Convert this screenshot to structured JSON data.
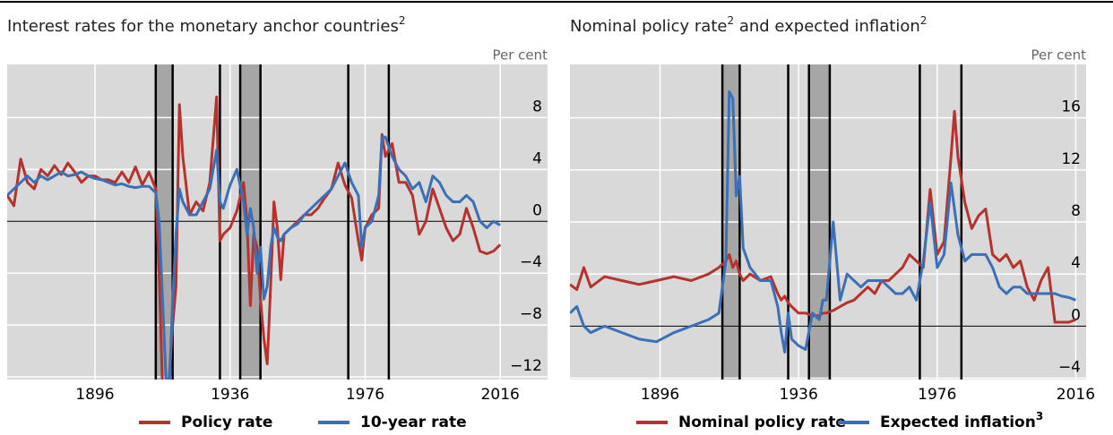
{
  "chart_data": [
    {
      "type": "line",
      "title": "Interest rates for the monetary anchor countries",
      "title_note": "2",
      "y_unit": "Per cent",
      "x": [
        1870,
        1872,
        1874,
        1876,
        1878,
        1880,
        1882,
        1884,
        1886,
        1888,
        1890,
        1892,
        1894,
        1896,
        1898,
        1900,
        1902,
        1904,
        1906,
        1908,
        1910,
        1912,
        1914,
        1915,
        1916,
        1917,
        1918,
        1919,
        1920,
        1921,
        1922,
        1924,
        1926,
        1928,
        1930,
        1932,
        1933,
        1934,
        1936,
        1938,
        1940,
        1941,
        1942,
        1943,
        1944,
        1945,
        1946,
        1947,
        1948,
        1949,
        1950,
        1951,
        1952,
        1954,
        1956,
        1958,
        1960,
        1962,
        1964,
        1966,
        1968,
        1970,
        1972,
        1974,
        1975,
        1976,
        1978,
        1980,
        1981,
        1982,
        1984,
        1986,
        1988,
        1990,
        1992,
        1994,
        1996,
        1998,
        2000,
        2002,
        2004,
        2006,
        2008,
        2010,
        2012,
        2014,
        2016
      ],
      "series": [
        {
          "name": "Policy rate",
          "color": "#b5322e",
          "values": [
            2,
            1.2,
            4.8,
            3,
            2.5,
            4,
            3.5,
            4.3,
            3.6,
            4.5,
            3.8,
            3,
            3.5,
            3.5,
            3.2,
            3.2,
            3,
            3.8,
            3,
            4.2,
            2.8,
            3.8,
            2.5,
            -4,
            -13,
            -13,
            -12,
            -8,
            -5,
            9,
            5,
            0.5,
            1.5,
            0.8,
            3,
            9.6,
            -1.5,
            -1,
            -0.5,
            0.8,
            3,
            0,
            -6.5,
            -1,
            -2,
            -6,
            -9,
            -11,
            -5,
            1.5,
            -0.5,
            -4.5,
            -1,
            -0.5,
            0,
            0.5,
            0.5,
            1,
            1.8,
            2.5,
            4.5,
            2.8,
            1.8,
            -1.5,
            -3,
            -0.5,
            0.5,
            1,
            6.7,
            5,
            6,
            3,
            3,
            2,
            -1,
            0,
            2.5,
            1,
            -0.5,
            -1.5,
            -1,
            1,
            -0.5,
            -2.3,
            -2.5,
            -2.3,
            -1.8
          ]
        },
        {
          "name": "10-year rate",
          "color": "#3b6fb6",
          "values": [
            2,
            2.5,
            3,
            3.5,
            3,
            3.5,
            3.2,
            3.5,
            3.8,
            3.5,
            3.6,
            3.8,
            3.5,
            3.3,
            3.2,
            3,
            2.8,
            2.9,
            2.7,
            2.6,
            2.7,
            2.7,
            2.2,
            0,
            -6,
            -12,
            -13,
            -6,
            -1,
            2.5,
            1.5,
            0.5,
            0.5,
            1.5,
            2.5,
            5.5,
            1.5,
            1,
            2.8,
            4,
            1.5,
            -1,
            1,
            -0.5,
            -4,
            -2,
            -6,
            -5,
            -2,
            -0.5,
            -1.2,
            -1.5,
            -1,
            -0.5,
            -0.2,
            0.5,
            1,
            1.5,
            2,
            2.5,
            3.5,
            4.5,
            3,
            2,
            -2,
            -0.5,
            0,
            2,
            6.5,
            6.5,
            5,
            4,
            3.5,
            2.5,
            3,
            1.5,
            3.5,
            3,
            2,
            1.5,
            1.5,
            2,
            1.5,
            0,
            -0.5,
            0,
            -0.3
          ]
        }
      ],
      "xlim": [
        1870,
        2030
      ],
      "xticks": [
        1896,
        1936,
        1976,
        2016
      ],
      "ylim": [
        -12.2,
        12.1
      ],
      "yticks": [
        {
          "value": -12,
          "label": "−12"
        },
        {
          "value": -8,
          "label": "−8"
        },
        {
          "value": -4,
          "label": "−4"
        },
        0,
        4,
        8
      ],
      "event_lines": [
        1914,
        1919,
        1933,
        1939,
        1945,
        1971,
        1983
      ],
      "shaded_periods": [
        [
          1914,
          1919
        ],
        [
          1939,
          1945
        ]
      ],
      "grid": true,
      "background": "#d9d9d9"
    },
    {
      "type": "line",
      "title_parts": [
        {
          "text": "Nominal policy rate",
          "note": "2"
        },
        {
          "text": " and expected inflation",
          "note": "2"
        }
      ],
      "y_unit": "Per cent",
      "x": [
        1870,
        1872,
        1874,
        1876,
        1880,
        1885,
        1890,
        1895,
        1900,
        1905,
        1910,
        1913,
        1915,
        1916,
        1917,
        1918,
        1919,
        1920,
        1922,
        1925,
        1928,
        1930,
        1931,
        1932,
        1933,
        1934,
        1936,
        1938,
        1940,
        1942,
        1943,
        1944,
        1946,
        1948,
        1950,
        1952,
        1954,
        1956,
        1958,
        1960,
        1962,
        1964,
        1966,
        1968,
        1970,
        1972,
        1974,
        1976,
        1978,
        1980,
        1981,
        1982,
        1984,
        1986,
        1988,
        1990,
        1992,
        1994,
        1996,
        1998,
        2000,
        2002,
        2004,
        2006,
        2008,
        2010,
        2012,
        2014,
        2016
      ],
      "series": [
        {
          "name": "Nominal policy rate",
          "color": "#b5322e",
          "values": [
            3.2,
            2.8,
            4.5,
            3,
            3.8,
            3.5,
            3.2,
            3.5,
            3.8,
            3.5,
            4,
            4.5,
            5,
            5.5,
            4.5,
            5,
            4,
            3.5,
            4,
            3.5,
            3.8,
            2.5,
            2,
            2.3,
            1.8,
            1.5,
            1,
            1,
            0.8,
            0.8,
            1,
            1,
            1.2,
            1.5,
            1.8,
            2,
            2.5,
            3,
            2.5,
            3.5,
            3.5,
            4,
            4.5,
            5.5,
            5,
            4.5,
            10.5,
            5.5,
            6.5,
            13,
            16.5,
            13,
            9.5,
            7.5,
            8.5,
            9,
            5.5,
            5,
            5.5,
            4.5,
            5,
            3,
            2,
            3.5,
            4.5,
            0.3,
            0.3,
            0.3,
            0.5
          ]
        },
        {
          "name": "Expected inflation",
          "note": "3",
          "color": "#3b6fb6",
          "values": [
            1,
            1.5,
            0,
            -0.5,
            0,
            -0.5,
            -1,
            -1.2,
            -0.5,
            0,
            0.5,
            1,
            5,
            18,
            17.5,
            10,
            11.5,
            6,
            4.5,
            3.5,
            3.5,
            1.5,
            -0.5,
            -2,
            1,
            -1,
            -1.5,
            -1.8,
            1,
            0.5,
            2,
            2,
            8,
            2,
            4,
            3.5,
            3,
            3.5,
            3.5,
            3.5,
            3,
            2.5,
            2.5,
            3,
            2,
            5,
            9.5,
            4.5,
            5.5,
            11,
            9,
            7,
            5,
            5.5,
            5.5,
            5.5,
            4.5,
            3,
            2.5,
            3,
            3,
            2.5,
            2.5,
            2.5,
            2.5,
            2.5,
            2.3,
            2.2,
            2
          ]
        }
      ],
      "xlim": [
        1870,
        2019
      ],
      "xticks": [
        1896,
        1936,
        1976,
        2016
      ],
      "ylim": [
        -4.1,
        20.1
      ],
      "yticks": [
        {
          "value": -4,
          "label": "−4"
        },
        0,
        4,
        8,
        12,
        16
      ],
      "event_lines": [
        1914,
        1919,
        1933,
        1939,
        1945,
        1971,
        1983
      ],
      "shaded_periods": [
        [
          1914,
          1919
        ],
        [
          1939,
          1945
        ]
      ],
      "grid": true,
      "background": "#d9d9d9"
    }
  ]
}
